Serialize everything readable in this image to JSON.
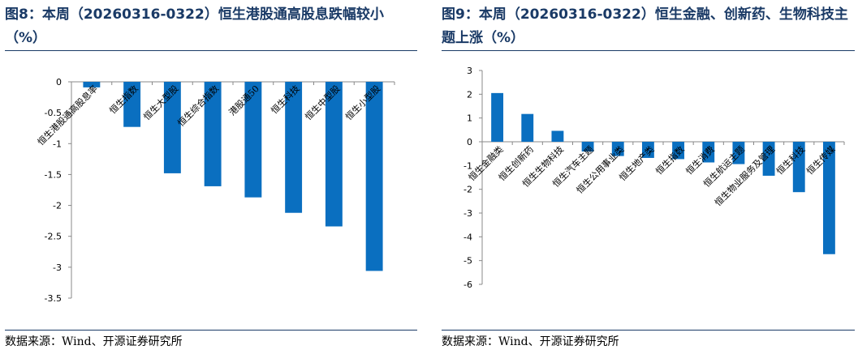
{
  "charts": [
    {
      "figure_title": "图8：本周（20260316-0322）恒生港股通高股息跌幅较小（%）",
      "source": "数据来源：Wind、开源证券研究所",
      "chart_data": {
        "type": "bar",
        "title": "",
        "xlabel": "",
        "ylabel": "",
        "categories": [
          "恒生港股通高股息率",
          "恒生指数",
          "恒生大型股",
          "恒生综合指数",
          "港股通50",
          "恒生科技",
          "恒生中型股",
          "恒生小型股"
        ],
        "values": [
          -0.09,
          -0.73,
          -1.48,
          -1.69,
          -1.87,
          -2.12,
          -2.34,
          -3.06
        ],
        "ylim": [
          -3.5,
          0
        ],
        "yticks": [
          0,
          -0.5,
          -1,
          -1.5,
          -2,
          -2.5,
          -3,
          -3.5
        ],
        "grid": false,
        "legend": "none",
        "bar_color": "#0a6fc0"
      }
    },
    {
      "figure_title": "图9：本周（20260316-0322）恒生金融、创新药、生物科技主题上涨（%）",
      "source": "数据来源：Wind、开源证券研究所",
      "chart_data": {
        "type": "bar",
        "title": "",
        "xlabel": "",
        "ylabel": "",
        "categories": [
          "恒生金融类",
          "恒生创新药",
          "恒生生物科技",
          "恒生汽车主题",
          "恒生公用事业类",
          "恒生地产类",
          "恒生指数",
          "恒生消费",
          "恒生航运主题",
          "恒生物业服务及管理",
          "恒生科技",
          "恒生传媒"
        ],
        "values": [
          2.05,
          1.17,
          0.46,
          -0.41,
          -0.6,
          -0.68,
          -0.73,
          -0.87,
          -0.94,
          -1.43,
          -2.12,
          -4.73
        ],
        "ylim": [
          -6,
          3
        ],
        "yticks": [
          3,
          2,
          1,
          0,
          -1,
          -2,
          -3,
          -4,
          -5,
          -6
        ],
        "grid": false,
        "legend": "none",
        "bar_color": "#0a6fc0"
      }
    }
  ]
}
